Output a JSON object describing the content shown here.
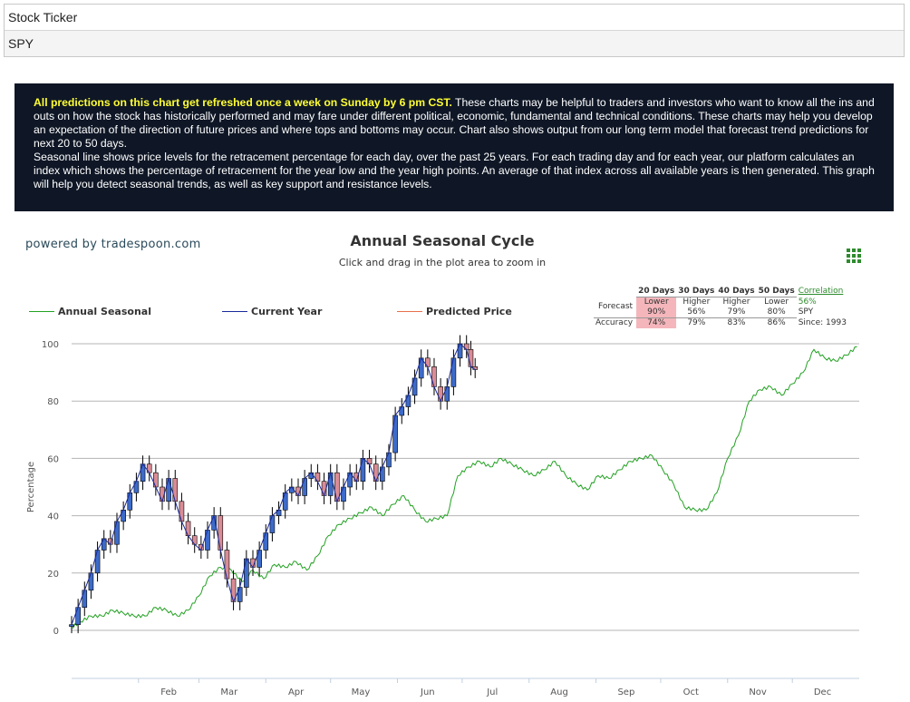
{
  "ticker": {
    "label": "Stock Ticker",
    "value": "SPY"
  },
  "banner": {
    "highlight": "All predictions on this chart get refreshed once a week on Sunday by 6 pm CST.",
    "text1": " These charts may be helpful to traders and investors who want to know all the ins and outs on how the stock has historically performed and may fare under different political, economic, fundamental and technical conditions. These charts may help you develop an expectation of the direction of future prices and where tops and bottoms may occur. Chart also shows output from our long term model that forecast trend predictions for next 20 to 50 days.",
    "text2": "Seasonal line shows price levels for the retracement percentage for each day, over the past 25 years. For each trading day and for each year, our platform calculates an index which shows the percentage of retracement for the year low and the year high points. An average of that index across all available years is then generated. This graph will help you detect seasonal trends, as well as key support and resistance levels."
  },
  "powered_by": "powered by tradespoon.com",
  "forecast_table": {
    "headers": [
      "20 Days",
      "30 Days",
      "40 Days",
      "50 Days"
    ],
    "forecast_label": "Forecast",
    "forecast_dir": [
      "Lower",
      "Higher",
      "Higher",
      "Lower"
    ],
    "forecast_pct": [
      "90%",
      "56%",
      "79%",
      "80%"
    ],
    "accuracy_label": "Accuracy",
    "accuracy": [
      "74%",
      "79%",
      "83%",
      "86%"
    ],
    "correlation_label": "Correlation",
    "correlation_value": "56%",
    "symbol": "SPY",
    "since": "Since: 1993"
  },
  "colors": {
    "seasonal": "#22a122",
    "current": "#1a2a9a",
    "predicted": "#e8704a",
    "candle_up": "#3d6bc9",
    "candle_down": "#d98c96"
  },
  "chart_data": {
    "type": "line",
    "title": "Annual Seasonal Cycle",
    "subtitle": "Click and drag in the plot area to zoom in",
    "ylabel": "Percentage",
    "ylim": [
      0,
      100
    ],
    "yticks": [
      0,
      20,
      40,
      60,
      80,
      100
    ],
    "x_tick_labels": [
      "Feb",
      "Mar",
      "Apr",
      "May",
      "Jun",
      "Jul",
      "Aug",
      "Sep",
      "Oct",
      "Nov",
      "Dec"
    ],
    "x_unit": "day of year",
    "xlim": [
      1,
      366
    ],
    "grid": true,
    "legend_placement": "top-left",
    "series": [
      {
        "name": "Annual Seasonal",
        "x": [
          1,
          5,
          10,
          15,
          20,
          25,
          30,
          35,
          40,
          45,
          50,
          55,
          60,
          65,
          70,
          75,
          80,
          85,
          90,
          95,
          100,
          105,
          110,
          115,
          120,
          125,
          130,
          135,
          140,
          145,
          150,
          155,
          160,
          165,
          170,
          175,
          180,
          185,
          190,
          195,
          200,
          205,
          210,
          215,
          220,
          225,
          230,
          235,
          240,
          245,
          250,
          255,
          260,
          265,
          270,
          275,
          280,
          285,
          290,
          295,
          300,
          305,
          310,
          315,
          320,
          325,
          330,
          335,
          340,
          345,
          350,
          355,
          360,
          365
        ],
        "y": [
          1,
          3,
          5,
          5,
          7,
          6,
          5,
          5,
          8,
          7,
          5,
          7,
          12,
          19,
          22,
          21,
          17,
          21,
          18,
          23,
          22,
          24,
          21,
          26,
          33,
          37,
          39,
          41,
          43,
          40,
          44,
          47,
          42,
          38,
          39,
          40,
          54,
          57,
          59,
          57,
          60,
          58,
          56,
          54,
          56,
          59,
          54,
          51,
          49,
          54,
          53,
          56,
          59,
          60,
          61,
          56,
          51,
          43,
          42,
          42,
          48,
          60,
          68,
          80,
          84,
          85,
          82,
          86,
          90,
          98,
          95,
          94,
          96,
          99
        ]
      },
      {
        "name": "Current Year",
        "x": [
          1,
          4,
          7,
          10,
          13,
          16,
          19,
          22,
          25,
          28,
          31,
          34,
          37,
          40,
          43,
          46,
          49,
          52,
          55,
          58,
          61,
          64,
          67,
          70,
          73,
          76,
          79,
          82,
          85,
          88,
          91,
          94,
          97,
          100,
          103,
          106,
          109,
          112,
          115,
          118,
          121,
          124,
          127,
          130,
          133,
          136,
          139,
          142,
          145,
          148,
          151,
          154,
          157,
          160,
          163,
          166,
          169,
          172,
          175,
          178,
          181,
          184,
          186,
          188
        ],
        "y": [
          2,
          8,
          14,
          20,
          28,
          32,
          30,
          38,
          42,
          48,
          52,
          58,
          55,
          50,
          45,
          53,
          45,
          38,
          33,
          30,
          28,
          35,
          40,
          28,
          18,
          10,
          15,
          25,
          22,
          28,
          34,
          40,
          42,
          48,
          50,
          47,
          53,
          55,
          52,
          47,
          55,
          45,
          50,
          55,
          52,
          60,
          58,
          52,
          57,
          62,
          75,
          78,
          82,
          88,
          95,
          92,
          85,
          80,
          85,
          95,
          100,
          98,
          92,
          91
        ]
      },
      {
        "name": "Predicted Price",
        "x": [],
        "y": []
      }
    ]
  }
}
